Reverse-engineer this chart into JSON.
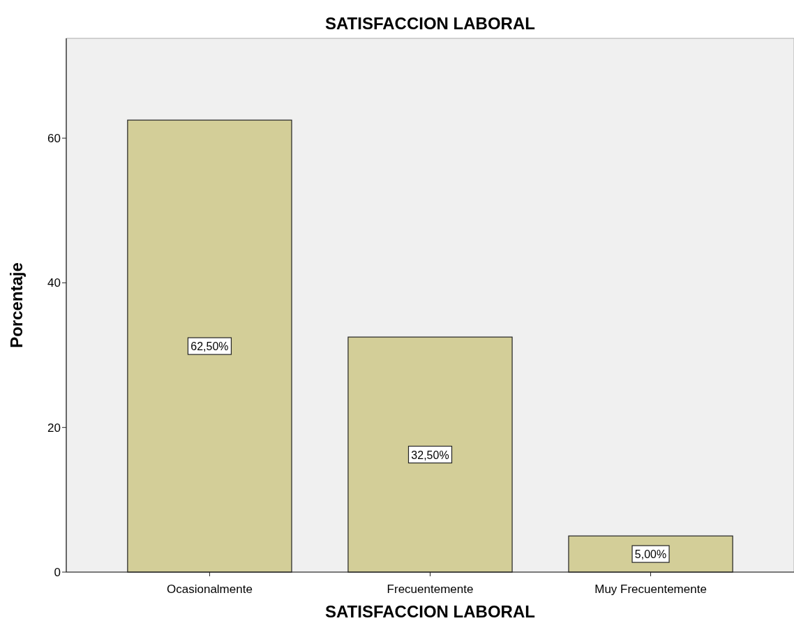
{
  "chart_data": {
    "type": "bar",
    "title": "SATISFACCION LABORAL",
    "xlabel": "SATISFACCION LABORAL",
    "ylabel": "Porcentaje",
    "categories": [
      "Ocasionalmente",
      "Frecuentemente",
      "Muy Frecuentemente"
    ],
    "values": [
      62.5,
      32.5,
      5
    ],
    "value_labels": [
      "62,50%",
      "32,50%",
      "5,00%"
    ],
    "color": "#d3ce98",
    "ylim": [
      0,
      73.8
    ],
    "yticks": [
      0,
      20,
      40,
      60
    ],
    "grid": false
  }
}
